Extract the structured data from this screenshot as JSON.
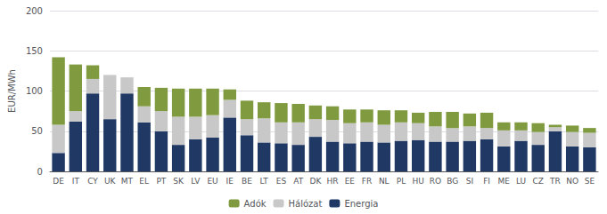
{
  "chart_data": {
    "type": "bar",
    "stacked": true,
    "categories": [
      "DE",
      "IT",
      "CY",
      "UK",
      "MT",
      "EL",
      "PT",
      "SK",
      "LV",
      "EU",
      "IE",
      "BE",
      "LT",
      "ES",
      "AT",
      "DK",
      "HR",
      "EE",
      "FR",
      "NL",
      "PL",
      "HU",
      "RO",
      "BG",
      "SI",
      "FI",
      "ME",
      "LU",
      "CZ",
      "TR",
      "NO",
      "SE"
    ],
    "series": [
      {
        "name": "Energia",
        "color": "#1f3864",
        "values": [
          23,
          62,
          97,
          65,
          97,
          61,
          50,
          33,
          40,
          42,
          67,
          45,
          36,
          35,
          33,
          43,
          37,
          35,
          37,
          36,
          38,
          39,
          37,
          37,
          38,
          40,
          31,
          38,
          33,
          50,
          31,
          30
        ]
      },
      {
        "name": "Hálózat",
        "color": "#c8c8c8",
        "values": [
          35,
          13,
          18,
          55,
          20,
          20,
          25,
          35,
          28,
          28,
          22,
          20,
          30,
          26,
          28,
          22,
          27,
          25,
          24,
          22,
          23,
          21,
          19,
          17,
          18,
          14,
          20,
          13,
          16,
          5,
          18,
          18
        ]
      },
      {
        "name": "Adók",
        "color": "#7f9a3f",
        "values": [
          84,
          58,
          17,
          0,
          0,
          24,
          29,
          35,
          35,
          33,
          13,
          23,
          20,
          24,
          23,
          17,
          17,
          17,
          16,
          18,
          15,
          13,
          18,
          20,
          16,
          19,
          10,
          10,
          11,
          3,
          8,
          6
        ]
      }
    ],
    "ylabel": "EUR/MWh",
    "ylim": [
      0,
      200
    ],
    "yticks": [
      0,
      50,
      100,
      150,
      200
    ],
    "grid": true,
    "legend": "bottom"
  }
}
